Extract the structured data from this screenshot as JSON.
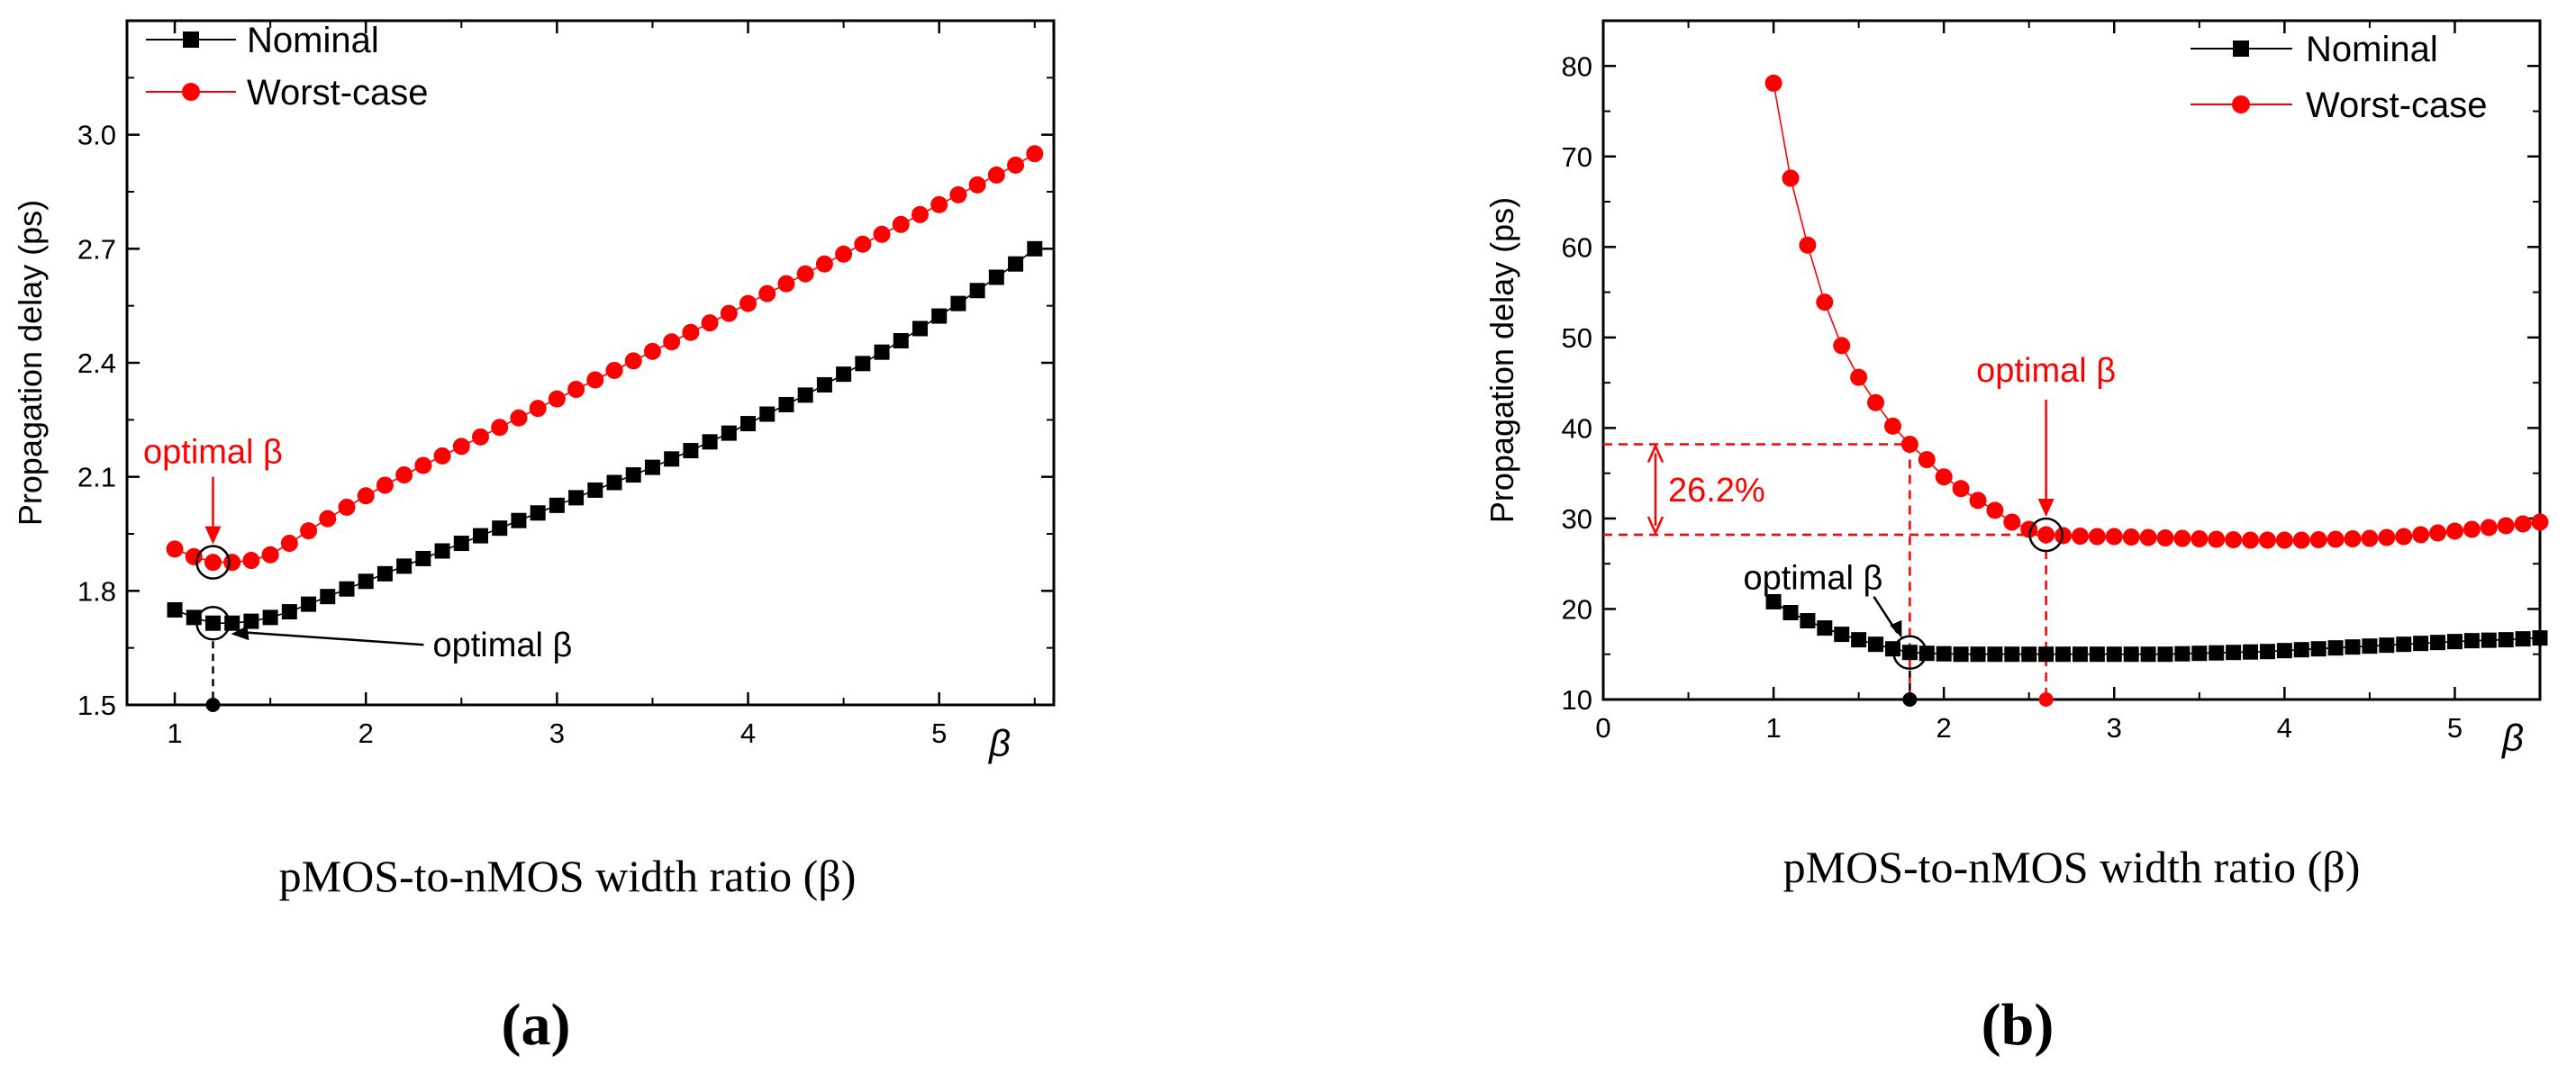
{
  "chart_data": [
    {
      "panel": "(a)",
      "type": "scatter",
      "xlabel": "pMOS-to-nMOS width ratio (β)",
      "ylabel": "Propagation delay (ps)",
      "axis_beta_label": "β",
      "xlim": [
        0.75,
        5.6
      ],
      "ylim": [
        1.5,
        3.3
      ],
      "xticks": [
        1,
        2,
        3,
        4,
        5
      ],
      "xtick_labels": [
        "1",
        "2",
        "3",
        "4",
        "5"
      ],
      "yticks": [
        1.5,
        1.8,
        2.1,
        2.4,
        2.7,
        3.0
      ],
      "ytick_labels": [
        "1.5",
        "1.8",
        "2.1",
        "2.4",
        "2.7",
        "3.0"
      ],
      "legend": [
        {
          "label": "Nominal",
          "marker": "square",
          "color": "#000000"
        },
        {
          "label": "Worst-case",
          "marker": "circle",
          "color": "#ff0000"
        }
      ],
      "series": [
        {
          "name": "Nominal",
          "color": "#000000",
          "marker": "square",
          "x": [
            1.0,
            1.1,
            1.2,
            1.3,
            1.4,
            1.5,
            1.6,
            1.7,
            1.8,
            1.9,
            2.0,
            2.1,
            2.2,
            2.3,
            2.4,
            2.5,
            2.6,
            2.7,
            2.8,
            2.9,
            3.0,
            3.1,
            3.2,
            3.3,
            3.4,
            3.5,
            3.6,
            3.7,
            3.8,
            3.9,
            4.0,
            4.1,
            4.2,
            4.3,
            4.4,
            4.5,
            4.6,
            4.7,
            4.8,
            4.9,
            5.0,
            5.1,
            5.2,
            5.3,
            5.4,
            5.5
          ],
          "y": [
            1.75,
            1.73,
            1.715,
            1.715,
            1.72,
            1.73,
            1.745,
            1.765,
            1.785,
            1.805,
            1.825,
            1.845,
            1.865,
            1.885,
            1.905,
            1.925,
            1.945,
            1.965,
            1.985,
            2.005,
            2.025,
            2.045,
            2.065,
            2.085,
            2.105,
            2.125,
            2.147,
            2.169,
            2.192,
            2.215,
            2.24,
            2.265,
            2.29,
            2.315,
            2.342,
            2.37,
            2.398,
            2.428,
            2.458,
            2.49,
            2.523,
            2.556,
            2.59,
            2.625,
            2.66,
            2.7
          ]
        },
        {
          "name": "Worst-case",
          "color": "#ff0000",
          "marker": "circle",
          "x": [
            1.0,
            1.1,
            1.2,
            1.3,
            1.4,
            1.5,
            1.6,
            1.7,
            1.8,
            1.9,
            2.0,
            2.1,
            2.2,
            2.3,
            2.4,
            2.5,
            2.6,
            2.7,
            2.8,
            2.9,
            3.0,
            3.1,
            3.2,
            3.3,
            3.4,
            3.5,
            3.6,
            3.7,
            3.8,
            3.9,
            4.0,
            4.1,
            4.2,
            4.3,
            4.4,
            4.5,
            4.6,
            4.7,
            4.8,
            4.9,
            5.0,
            5.1,
            5.2,
            5.3,
            5.4,
            5.5
          ],
          "y": [
            1.91,
            1.89,
            1.875,
            1.875,
            1.88,
            1.895,
            1.925,
            1.958,
            1.99,
            2.02,
            2.05,
            2.078,
            2.105,
            2.13,
            2.155,
            2.18,
            2.205,
            2.23,
            2.255,
            2.28,
            2.305,
            2.33,
            2.355,
            2.38,
            2.405,
            2.43,
            2.455,
            2.48,
            2.505,
            2.53,
            2.556,
            2.582,
            2.608,
            2.634,
            2.66,
            2.686,
            2.712,
            2.738,
            2.764,
            2.79,
            2.816,
            2.842,
            2.868,
            2.894,
            2.92,
            2.95
          ]
        }
      ],
      "annotations": [
        {
          "text": "optimal β",
          "color": "#ff0000",
          "target_x": 1.2,
          "target_y": 1.875
        },
        {
          "text": "optimal β",
          "color": "#000000",
          "target_x": 1.2,
          "target_y": 1.715
        }
      ],
      "optimal_beta_marker": {
        "x": 1.2
      }
    },
    {
      "panel": "(b)",
      "type": "scatter",
      "xlabel": "pMOS-to-nMOS width ratio (β)",
      "ylabel": "Propagation delay (ps)",
      "axis_beta_label": "β",
      "xlim": [
        0,
        5.5
      ],
      "ylim": [
        10,
        85
      ],
      "xticks": [
        0,
        1,
        2,
        3,
        4,
        5
      ],
      "xtick_labels": [
        "0",
        "1",
        "2",
        "3",
        "4",
        "5"
      ],
      "yticks": [
        10,
        20,
        30,
        40,
        50,
        60,
        70,
        80
      ],
      "ytick_labels": [
        "10",
        "20",
        "30",
        "40",
        "50",
        "60",
        "70",
        "80"
      ],
      "legend": [
        {
          "label": "Nominal",
          "marker": "square",
          "color": "#000000"
        },
        {
          "label": "Worst-case",
          "marker": "circle",
          "color": "#ff0000"
        }
      ],
      "series": [
        {
          "name": "Nominal",
          "color": "#000000",
          "marker": "square",
          "x": [
            1.0,
            1.1,
            1.2,
            1.3,
            1.4,
            1.5,
            1.6,
            1.7,
            1.8,
            1.9,
            2.0,
            2.1,
            2.2,
            2.3,
            2.4,
            2.5,
            2.6,
            2.7,
            2.8,
            2.9,
            3.0,
            3.1,
            3.2,
            3.3,
            3.4,
            3.5,
            3.6,
            3.7,
            3.8,
            3.9,
            4.0,
            4.1,
            4.2,
            4.3,
            4.4,
            4.5,
            4.6,
            4.7,
            4.8,
            4.9,
            5.0,
            5.1,
            5.2,
            5.3,
            5.4,
            5.5
          ],
          "y": [
            20.8,
            19.6,
            18.7,
            17.9,
            17.2,
            16.6,
            16.1,
            15.6,
            15.2,
            15.1,
            15.05,
            15.0,
            15.0,
            15.0,
            15.0,
            15.0,
            15.0,
            15.0,
            15.0,
            15.0,
            15.0,
            15.0,
            15.0,
            15.0,
            15.05,
            15.1,
            15.15,
            15.2,
            15.25,
            15.3,
            15.4,
            15.5,
            15.6,
            15.7,
            15.8,
            15.9,
            16.0,
            16.1,
            16.2,
            16.3,
            16.4,
            16.5,
            16.55,
            16.6,
            16.7,
            16.8
          ]
        },
        {
          "name": "Worst-case",
          "color": "#ff0000",
          "marker": "circle",
          "x": [
            1.0,
            1.1,
            1.2,
            1.3,
            1.4,
            1.5,
            1.6,
            1.7,
            1.8,
            1.9,
            2.0,
            2.1,
            2.2,
            2.3,
            2.4,
            2.5,
            2.6,
            2.7,
            2.8,
            2.9,
            3.0,
            3.1,
            3.2,
            3.3,
            3.4,
            3.5,
            3.6,
            3.7,
            3.8,
            3.9,
            4.0,
            4.1,
            4.2,
            4.3,
            4.4,
            4.5,
            4.6,
            4.7,
            4.8,
            4.9,
            5.0,
            5.1,
            5.2,
            5.3,
            5.4,
            5.5
          ],
          "y": [
            78.1,
            67.6,
            60.2,
            53.9,
            49.1,
            45.6,
            42.8,
            40.2,
            38.2,
            36.5,
            34.6,
            33.3,
            32.0,
            30.9,
            29.6,
            28.8,
            28.2,
            28.1,
            28.05,
            28.0,
            28.0,
            27.95,
            27.9,
            27.85,
            27.8,
            27.75,
            27.7,
            27.65,
            27.6,
            27.6,
            27.6,
            27.6,
            27.65,
            27.7,
            27.75,
            27.8,
            27.9,
            28.0,
            28.2,
            28.4,
            28.6,
            28.8,
            29.0,
            29.2,
            29.4,
            29.6
          ]
        }
      ],
      "annotations": [
        {
          "text": "optimal β",
          "color": "#ff0000",
          "target_x": 2.6,
          "target_y": 28.2
        },
        {
          "text": "optimal β",
          "color": "#000000",
          "target_x": 1.8,
          "target_y": 15.2
        },
        {
          "text": "26.2%",
          "color": "#ff0000"
        }
      ],
      "reference_lines": {
        "y_high": 38.2,
        "y_low": 28.2,
        "x_nominal_opt": 1.8,
        "x_worst_opt": 2.6
      }
    }
  ]
}
